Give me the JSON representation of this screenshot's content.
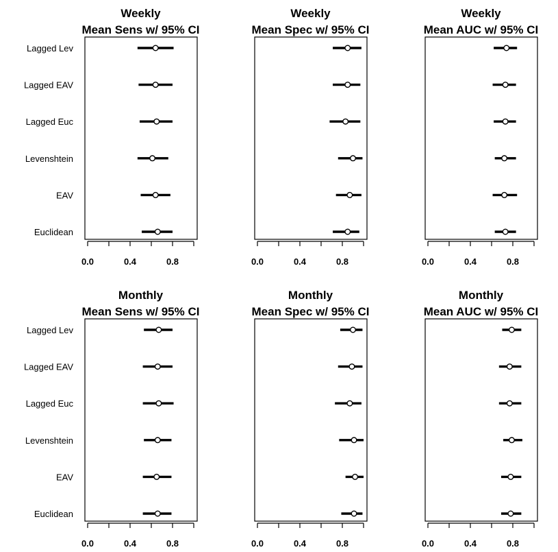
{
  "categories": [
    "Lagged Lev",
    "Lagged EAV",
    "Lagged Euc",
    "Levenshtein",
    "EAV",
    "Euclidean"
  ],
  "xtick_labels": [
    "0.0",
    "0.4",
    "0.8"
  ],
  "colors": {
    "background": "#ffffff",
    "ink": "#000000"
  },
  "chart_data": [
    {
      "type": "forest",
      "title": [
        "Weekly",
        "Mean Sens w/ 95% CI"
      ],
      "categories": [
        "Lagged Lev",
        "Lagged EAV",
        "Lagged Euc",
        "Levenshtein",
        "EAV",
        "Euclidean"
      ],
      "xlim": [
        0,
        1
      ],
      "xticks": [
        0,
        0.2,
        0.4,
        0.6,
        0.8,
        1.0
      ],
      "xtick_labels": [
        "0.0",
        "0.4",
        "0.8"
      ],
      "mean": [
        0.64,
        0.64,
        0.65,
        0.61,
        0.64,
        0.66
      ],
      "lower": [
        0.47,
        0.48,
        0.49,
        0.47,
        0.5,
        0.51
      ],
      "upper": [
        0.81,
        0.8,
        0.8,
        0.76,
        0.78,
        0.8
      ]
    },
    {
      "type": "forest",
      "title": [
        "Weekly",
        "Mean Spec w/ 95% CI"
      ],
      "categories": [
        "Lagged Lev",
        "Lagged EAV",
        "Lagged Euc",
        "Levenshtein",
        "EAV",
        "Euclidean"
      ],
      "xlim": [
        0,
        1
      ],
      "xticks": [
        0,
        0.2,
        0.4,
        0.6,
        0.8,
        1.0
      ],
      "xtick_labels": [
        "0.0",
        "0.4",
        "0.8"
      ],
      "mean": [
        0.85,
        0.85,
        0.83,
        0.9,
        0.87,
        0.85
      ],
      "lower": [
        0.71,
        0.71,
        0.68,
        0.76,
        0.74,
        0.71
      ],
      "upper": [
        0.98,
        0.97,
        0.97,
        0.99,
        0.98,
        0.96
      ]
    },
    {
      "type": "forest",
      "title": [
        "Weekly",
        "Mean AUC w/ 95% CI"
      ],
      "categories": [
        "Lagged Lev",
        "Lagged EAV",
        "Lagged Euc",
        "Levenshtein",
        "EAV",
        "Euclidean"
      ],
      "xlim": [
        0,
        1
      ],
      "xticks": [
        0,
        0.2,
        0.4,
        0.6,
        0.8,
        1.0
      ],
      "xtick_labels": [
        "0.0",
        "0.4",
        "0.8"
      ],
      "mean": [
        0.74,
        0.73,
        0.73,
        0.72,
        0.72,
        0.73
      ],
      "lower": [
        0.62,
        0.61,
        0.62,
        0.63,
        0.61,
        0.63
      ],
      "upper": [
        0.84,
        0.83,
        0.83,
        0.83,
        0.84,
        0.83
      ]
    },
    {
      "type": "forest",
      "title": [
        "Monthly",
        "Mean Sens w/ 95% CI"
      ],
      "categories": [
        "Lagged Lev",
        "Lagged EAV",
        "Lagged Euc",
        "Levenshtein",
        "EAV",
        "Euclidean"
      ],
      "xlim": [
        0,
        1
      ],
      "xticks": [
        0,
        0.2,
        0.4,
        0.6,
        0.8,
        1.0
      ],
      "xtick_labels": [
        "0.0",
        "0.4",
        "0.8"
      ],
      "mean": [
        0.67,
        0.66,
        0.67,
        0.66,
        0.65,
        0.66
      ],
      "lower": [
        0.53,
        0.52,
        0.52,
        0.53,
        0.52,
        0.52
      ],
      "upper": [
        0.8,
        0.8,
        0.81,
        0.79,
        0.79,
        0.79
      ]
    },
    {
      "type": "forest",
      "title": [
        "Monthly",
        "Mean Spec w/ 95% CI"
      ],
      "categories": [
        "Lagged Lev",
        "Lagged EAV",
        "Lagged Euc",
        "Levenshtein",
        "EAV",
        "Euclidean"
      ],
      "xlim": [
        0,
        1
      ],
      "xticks": [
        0,
        0.2,
        0.4,
        0.6,
        0.8,
        1.0
      ],
      "xtick_labels": [
        "0.0",
        "0.4",
        "0.8"
      ],
      "mean": [
        0.9,
        0.89,
        0.87,
        0.91,
        0.92,
        0.91
      ],
      "lower": [
        0.78,
        0.76,
        0.73,
        0.77,
        0.83,
        0.79
      ],
      "upper": [
        0.99,
        0.99,
        0.98,
        1.0,
        1.0,
        0.99
      ]
    },
    {
      "type": "forest",
      "title": [
        "Monthly",
        "Mean AUC w/ 95% CI"
      ],
      "categories": [
        "Lagged Lev",
        "Lagged EAV",
        "Lagged Euc",
        "Levenshtein",
        "EAV",
        "Euclidean"
      ],
      "xlim": [
        0,
        1
      ],
      "xticks": [
        0,
        0.2,
        0.4,
        0.6,
        0.8,
        1.0
      ],
      "xtick_labels": [
        "0.0",
        "0.4",
        "0.8"
      ],
      "mean": [
        0.79,
        0.77,
        0.77,
        0.79,
        0.78,
        0.78
      ],
      "lower": [
        0.7,
        0.67,
        0.67,
        0.71,
        0.69,
        0.69
      ],
      "upper": [
        0.88,
        0.88,
        0.88,
        0.89,
        0.88,
        0.88
      ]
    }
  ]
}
